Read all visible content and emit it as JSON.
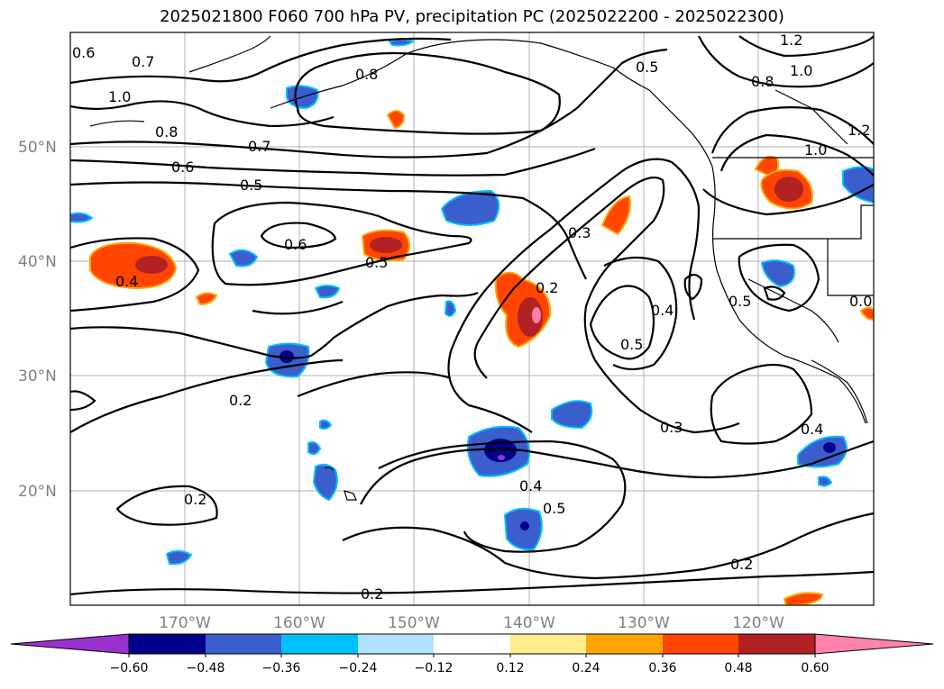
{
  "title": "2025021800 F060 700 hPa PV, precipitation PC (2025022200 - 2025022300)",
  "map": {
    "lat_labels": [
      "50°N",
      "40°N",
      "30°N",
      "20°N"
    ],
    "lon_labels": [
      "170°W",
      "160°W",
      "150°W",
      "140°W",
      "130°W",
      "120°W"
    ],
    "contour_labels": [
      "0.6",
      "0.7",
      "1.0",
      "0.8",
      "0.8",
      "0.5",
      "1.2",
      "1.0",
      "0.8",
      "1.2",
      "1.0",
      "0.7",
      "0.6",
      "0.5",
      "0.6",
      "0.5",
      "0.4",
      "0.3",
      "0.2",
      "0.4",
      "0.5",
      "0.5",
      "0.2",
      "0.3",
      "0.4",
      "0.4",
      "0.5",
      "0.2",
      "0.2",
      "0.2",
      "0.0"
    ]
  },
  "colorbar": {
    "ticks": [
      "−0.60",
      "−0.48",
      "−0.36",
      "−0.24",
      "−0.12",
      "0.12",
      "0.24",
      "0.36",
      "0.48",
      "0.60"
    ],
    "colors": [
      "#9932cc",
      "#00008b",
      "#3a5fcd",
      "#00bfff",
      "#b0e2ff",
      "#ffffff",
      "#ffec8b",
      "#ffa500",
      "#ff4500",
      "#b22222",
      "#ff82ab"
    ]
  }
}
